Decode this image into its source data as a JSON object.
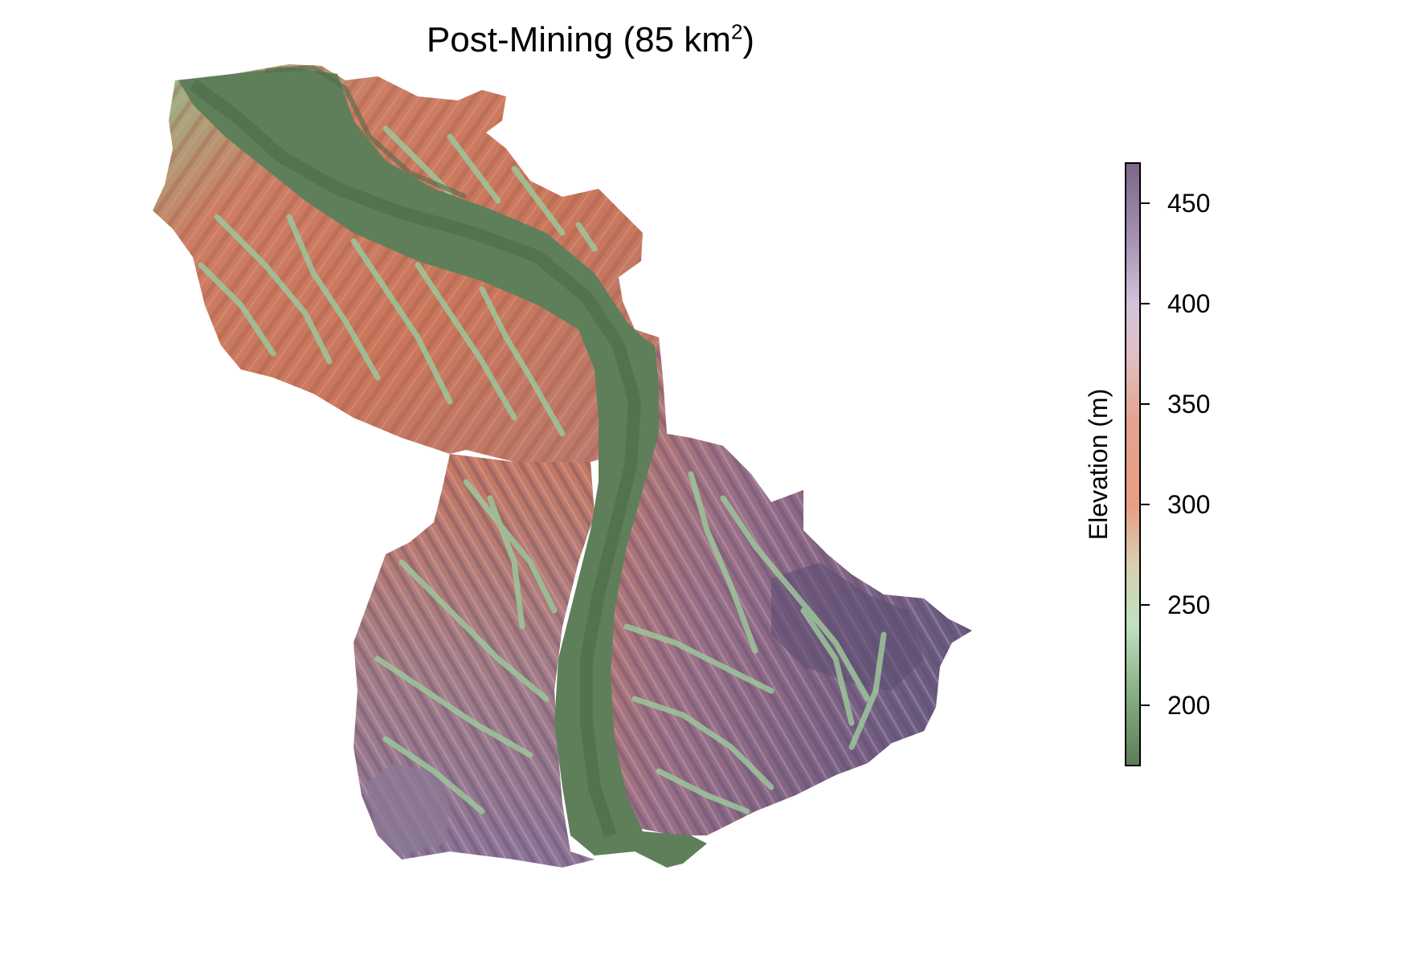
{
  "title": {
    "prefix": "Post-Mining (85 km",
    "superscript": "2",
    "suffix": ")"
  },
  "map": {
    "description_colors": {
      "valley_floor": "#5f7f5a",
      "stream_green": "#86b58a",
      "ridge_orange": "#c97a5e",
      "upland_purple": "#6d5a7d"
    }
  },
  "legend": {
    "title": "Elevation (m)",
    "range": [
      170,
      470
    ],
    "ticks": [
      200,
      250,
      300,
      350,
      400,
      450
    ],
    "stops": [
      {
        "value": 170,
        "color": "#5d7c58"
      },
      {
        "value": 200,
        "color": "#7fa67c"
      },
      {
        "value": 240,
        "color": "#bfe2c0"
      },
      {
        "value": 270,
        "color": "#d7cfb0"
      },
      {
        "value": 300,
        "color": "#e89e84"
      },
      {
        "value": 340,
        "color": "#e5a28d"
      },
      {
        "value": 375,
        "color": "#e0c0c4"
      },
      {
        "value": 400,
        "color": "#d3c3dc"
      },
      {
        "value": 430,
        "color": "#a994b6"
      },
      {
        "value": 470,
        "color": "#7b6688"
      }
    ]
  }
}
